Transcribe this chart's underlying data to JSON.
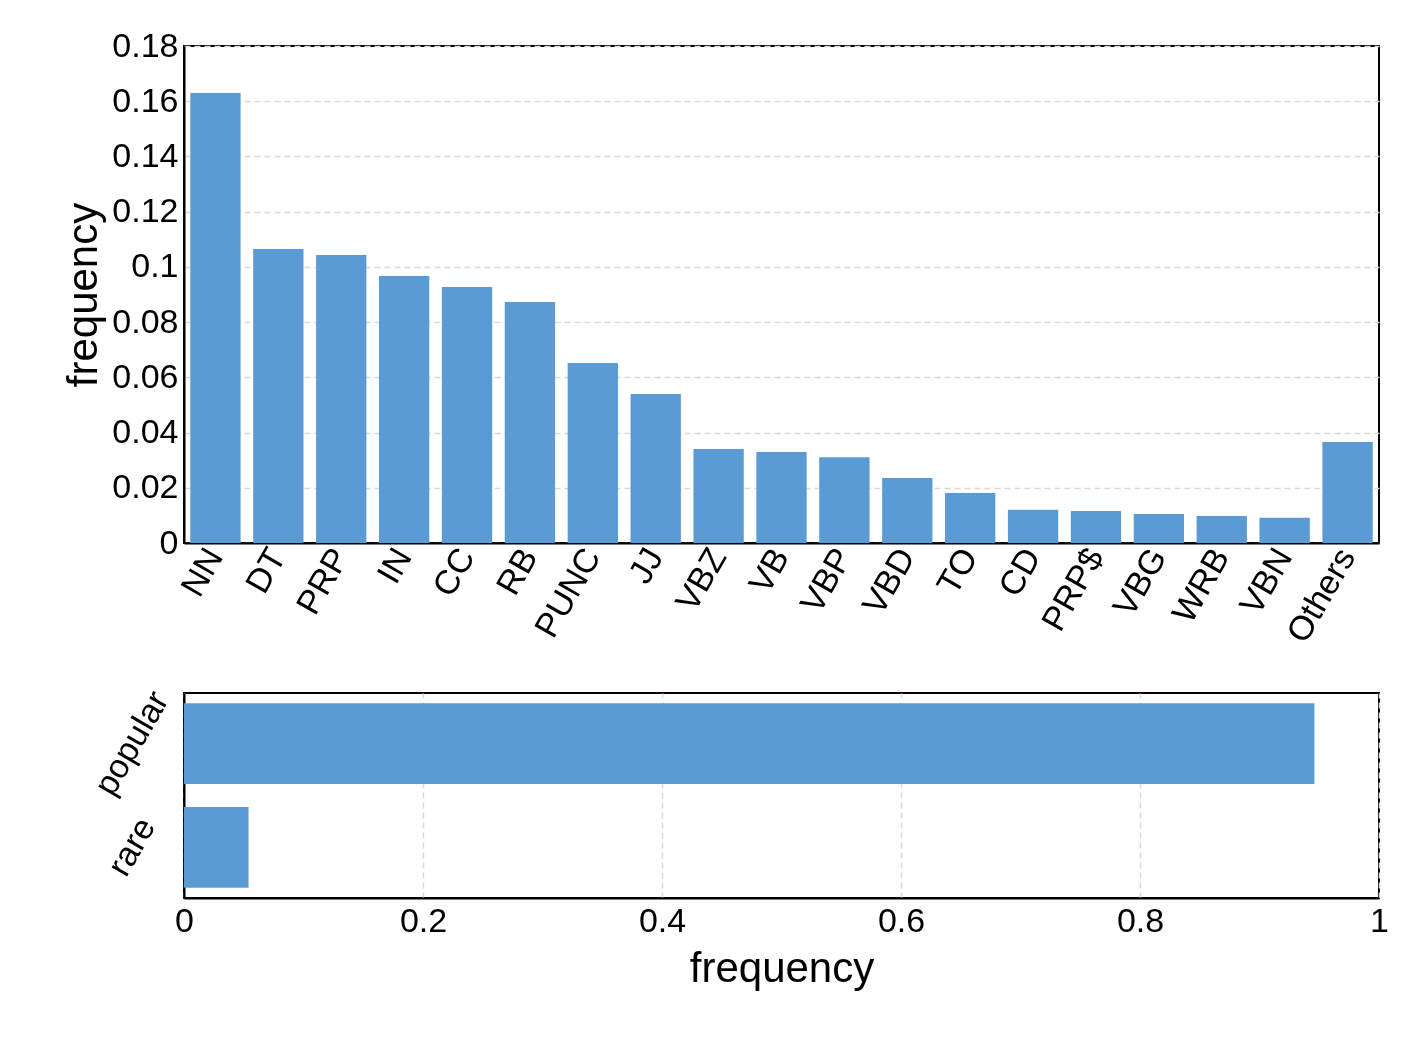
{
  "chart_data": [
    {
      "type": "bar",
      "ylabel": "frequency",
      "categories": [
        "NN",
        "DT",
        "PRP",
        "IN",
        "CC",
        "RB",
        "PUNC",
        "JJ",
        "VBZ",
        "VB",
        "VBP",
        "VBD",
        "TO",
        "CD",
        "PRP$",
        "VBG",
        "WRB",
        "VBN",
        "Others"
      ],
      "values": [
        0.163,
        0.1065,
        0.1043,
        0.0967,
        0.0927,
        0.0873,
        0.0652,
        0.054,
        0.034,
        0.033,
        0.0311,
        0.0235,
        0.0181,
        0.012,
        0.0116,
        0.0105,
        0.0098,
        0.0091,
        0.0366
      ],
      "color": "#5b9bd5",
      "ylim": [
        0,
        0.18
      ],
      "yticks": [
        0,
        0.02,
        0.04,
        0.06,
        0.08,
        0.1,
        0.12,
        0.14,
        0.16,
        0.18
      ],
      "grid": "y"
    },
    {
      "type": "bar",
      "orientation": "horizontal",
      "xlabel": "frequency",
      "categories": [
        "popular",
        "rare"
      ],
      "values": [
        0.946,
        0.054
      ],
      "color": "#5b9bd5",
      "xlim": [
        0,
        1
      ],
      "xticks": [
        0,
        0.2,
        0.4,
        0.6,
        0.8,
        1
      ],
      "grid": "x"
    }
  ]
}
